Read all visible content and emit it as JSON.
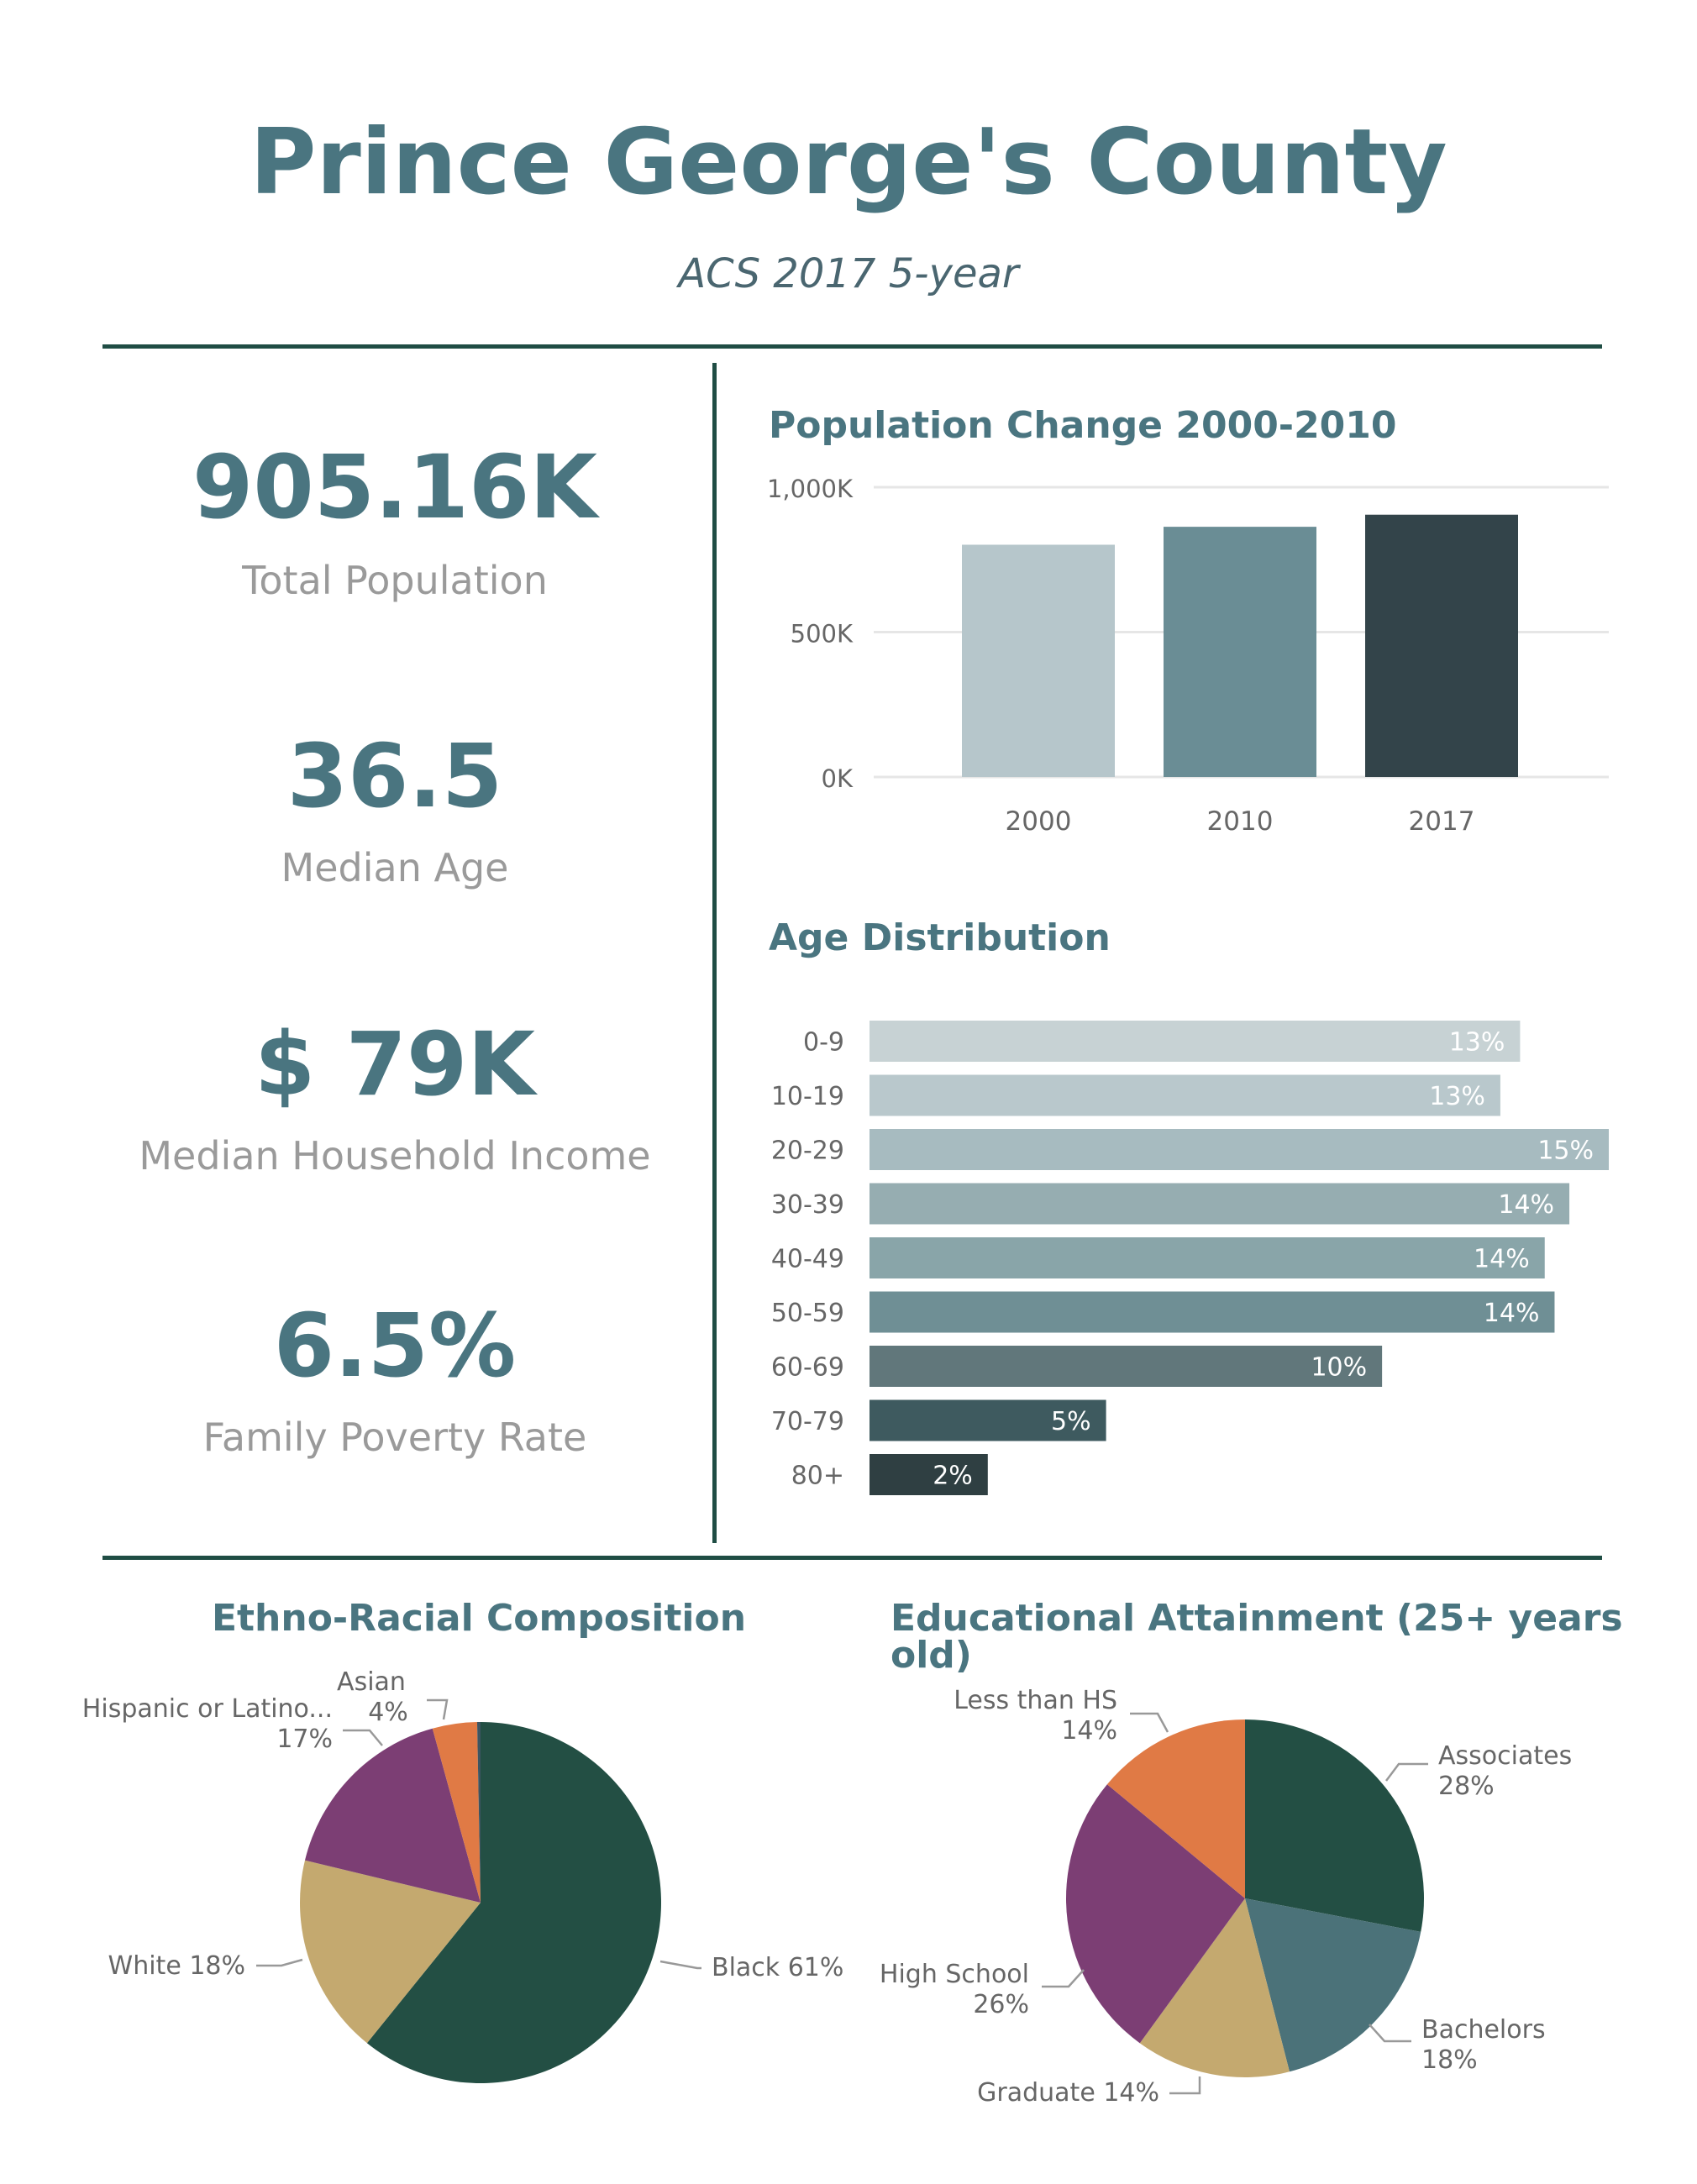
{
  "header": {
    "title": "Prince George's County",
    "subtitle": "ACS 2017 5-year"
  },
  "kpis": [
    {
      "value": "905.16K",
      "label": "Total Population"
    },
    {
      "value": "36.5",
      "label": "Median Age"
    },
    {
      "value": "$ 79K",
      "label": "Median Household Income"
    },
    {
      "value": "6.5%",
      "label": "Family Poverty Rate"
    }
  ],
  "colors": {
    "title": "#4a7580",
    "rule": "#1f4d44",
    "pop_bars": [
      "#b6c6cb",
      "#6a8d95",
      "#33444a"
    ],
    "age_bars": [
      "#c7d2d4",
      "#b9c8cc",
      "#a7bbc0",
      "#96adb1",
      "#89a5a9",
      "#6f8f95",
      "#61777b",
      "#3e5a5f",
      "#2f3f42"
    ],
    "pie": {
      "dark_green": "#234f44",
      "purple": "#7c3e74",
      "tan": "#c4a96f",
      "orange": "#e07a45",
      "teal": "#4b7279",
      "slate": "#3d5562"
    }
  },
  "chart_data": [
    {
      "type": "bar",
      "title": "Population Change 2000-2010",
      "categories": [
        "2000",
        "2010",
        "2017"
      ],
      "values": [
        801515,
        863420,
        905160
      ],
      "ylim": [
        0,
        1000000
      ],
      "yticks": [
        {
          "value": 0,
          "label": "0K"
        },
        {
          "value": 500000,
          "label": "500K"
        },
        {
          "value": 1000000,
          "label": "1,000K"
        }
      ],
      "grid": true
    },
    {
      "type": "bar",
      "orientation": "horizontal",
      "title": "Age Distribution",
      "categories": [
        "0-9",
        "10-19",
        "20-29",
        "30-39",
        "40-49",
        "50-59",
        "60-69",
        "70-79",
        "80+"
      ],
      "values": [
        13.2,
        12.8,
        15.0,
        14.2,
        13.7,
        13.9,
        10.4,
        4.8,
        2.4
      ],
      "value_labels": [
        "13%",
        "13%",
        "15%",
        "14%",
        "14%",
        "14%",
        "10%",
        "5%",
        "2%"
      ],
      "xlim": [
        0,
        15
      ]
    },
    {
      "type": "pie",
      "title": "Ethno-Racial Composition",
      "slices": [
        {
          "name": "Black",
          "value": 61,
          "label": "Black 61%",
          "color": "#234f44"
        },
        {
          "name": "White",
          "value": 18,
          "label": "White 18%",
          "color": "#c4a96f"
        },
        {
          "name": "Hispanic or Latino...",
          "value": 17,
          "label": "17%",
          "color": "#7c3e74"
        },
        {
          "name": "Asian",
          "value": 4,
          "label": "4%",
          "color": "#e07a45"
        },
        {
          "name": "",
          "value": 0.3,
          "label": "",
          "color": "#3d5562"
        }
      ]
    },
    {
      "type": "pie",
      "title": "Educational Attainment (25+ years old)",
      "slices": [
        {
          "name": "Associates",
          "value": 28,
          "label": "28%",
          "color": "#234f44"
        },
        {
          "name": "Bachelors",
          "value": 18,
          "label": "18%",
          "color": "#4b7279"
        },
        {
          "name": "Graduate",
          "value": 14,
          "label": "Graduate 14%",
          "color": "#c4a96f"
        },
        {
          "name": "High School",
          "value": 26,
          "label": "26%",
          "color": "#7c3e74"
        },
        {
          "name": "Less than HS",
          "value": 14,
          "label": "14%",
          "color": "#e07a45"
        }
      ]
    }
  ]
}
